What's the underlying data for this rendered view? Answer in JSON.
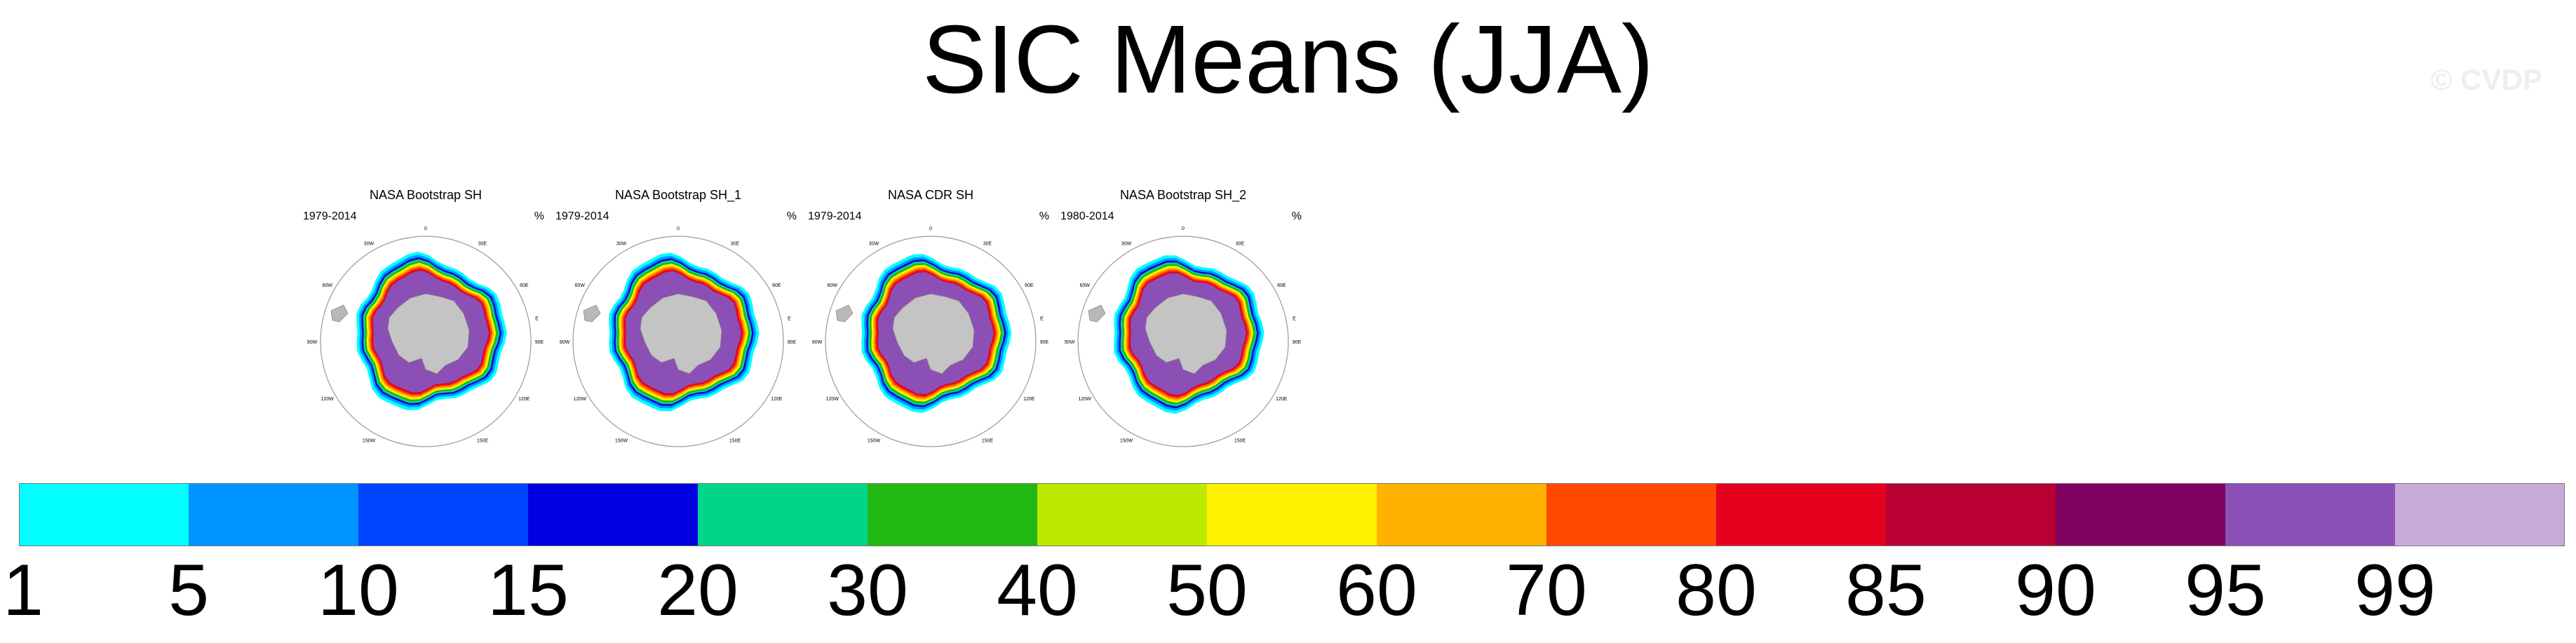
{
  "title": "SIC Means (JJA)",
  "watermark": "© CVDP",
  "unit": "%",
  "panels": [
    {
      "title": "NASA Bootstrap SH",
      "years": "1979-2014"
    },
    {
      "title": "NASA Bootstrap SH_1",
      "years": "1979-2014"
    },
    {
      "title": "NASA CDR SH",
      "years": "1979-2014"
    },
    {
      "title": "NASA Bootstrap SH_2",
      "years": "1980-2014"
    }
  ],
  "map_longitude_labels": [
    "0",
    "30E",
    "60E",
    "E",
    "90E",
    "120E",
    "150E",
    "180",
    "150W",
    "120W",
    "90W",
    "60W",
    "30W"
  ],
  "chart_data": {
    "type": "heatmap",
    "title": "SIC Means (JJA)",
    "projection": "south-polar-stereographic",
    "variable": "sea ice concentration",
    "colorbar": {
      "orientation": "horizontal",
      "ticks": [
        "1",
        "5",
        "10",
        "15",
        "20",
        "30",
        "40",
        "50",
        "60",
        "70",
        "80",
        "85",
        "90",
        "95",
        "99"
      ],
      "colors": [
        "#00ffff",
        "#0096ff",
        "#0044ff",
        "#0000e0",
        "#00d68a",
        "#22b814",
        "#bde800",
        "#fff200",
        "#ffb300",
        "#ff4800",
        "#e6001f",
        "#b80033",
        "#800060",
        "#8c4fb5",
        "#c8aad8"
      ]
    },
    "maps": [
      {
        "name": "NASA Bootstrap SH",
        "period": "1979-2014"
      },
      {
        "name": "NASA Bootstrap SH_1",
        "period": "1979-2014"
      },
      {
        "name": "NASA CDR SH",
        "period": "1979-2014"
      },
      {
        "name": "NASA Bootstrap SH_2",
        "period": "1980-2014"
      }
    ]
  }
}
